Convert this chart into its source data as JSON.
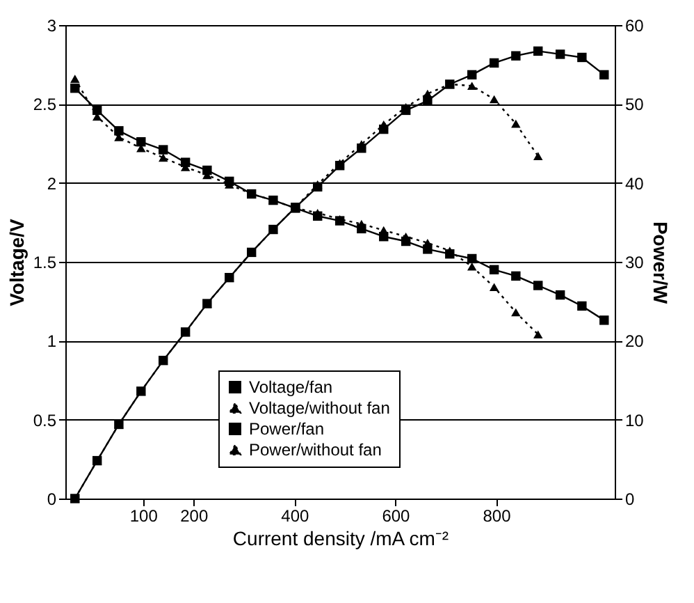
{
  "chart_data": {
    "type": "line",
    "xlabel": "Current density /mA cm⁻²",
    "ylabel": "Voltage/V",
    "y2label": "Power/W",
    "x": [
      -35,
      9,
      52,
      96,
      140,
      184,
      227,
      271,
      315,
      358,
      402,
      446,
      490,
      533,
      577,
      621,
      664,
      708,
      752,
      796,
      839,
      883,
      927,
      970,
      1014
    ],
    "xlim": [
      -54,
      1035
    ],
    "xticks": [
      100,
      200,
      400,
      600,
      800
    ],
    "ylim": [
      0,
      3
    ],
    "yticks": [
      0,
      0.5,
      1,
      1.5,
      2,
      2.5,
      3
    ],
    "y2lim": [
      0,
      60
    ],
    "y2ticks": [
      0,
      10,
      20,
      30,
      40,
      50,
      60
    ],
    "grid": "y",
    "legend": "bottom",
    "series": [
      {
        "name": "Voltage/fan",
        "color": "#000000",
        "marker": "square",
        "line_style": "solid",
        "values": [
          2.6,
          2.46,
          2.33,
          2.26,
          2.21,
          2.13,
          2.08,
          2.01,
          1.93,
          1.89,
          1.84,
          1.79,
          1.76,
          1.71,
          1.66,
          1.63,
          1.58,
          1.55,
          1.52,
          1.45,
          1.41,
          1.35,
          1.29,
          1.22,
          1.13
        ]
      },
      {
        "name": "Voltage/without fan",
        "color": "#000000",
        "marker": "triangle",
        "line_style": "dotted",
        "values": [
          2.66,
          2.42,
          2.29,
          2.22,
          2.16,
          2.1,
          2.05,
          1.99,
          1.93,
          1.89,
          1.84,
          1.81,
          1.77,
          1.74,
          1.7,
          1.66,
          1.62,
          1.57,
          1.47,
          1.34,
          1.18,
          1.04,
          null,
          null,
          null
        ]
      },
      {
        "name": "Power/fan",
        "color": "#000000",
        "marker": "square",
        "line_style": "solid",
        "axis": "y2",
        "values": [
          0,
          4.8,
          9.4,
          13.6,
          17.5,
          21.1,
          24.7,
          28.0,
          31.2,
          34.1,
          36.9,
          39.5,
          42.2,
          44.4,
          46.8,
          49.2,
          50.4,
          52.5,
          53.7,
          55.2,
          56.1,
          56.7,
          56.3,
          55.9,
          53.7
        ]
      },
      {
        "name": "Power/without fan",
        "color": "#000000",
        "marker": "triangle",
        "line_style": "dotted",
        "axis": "y2",
        "values": [
          0,
          4.8,
          9.4,
          13.6,
          17.5,
          21.1,
          24.7,
          28.0,
          31.2,
          34.1,
          36.9,
          39.8,
          42.5,
          44.9,
          47.4,
          49.6,
          51.3,
          52.5,
          52.3,
          50.6,
          47.5,
          43.4,
          null,
          null,
          null
        ]
      }
    ]
  }
}
